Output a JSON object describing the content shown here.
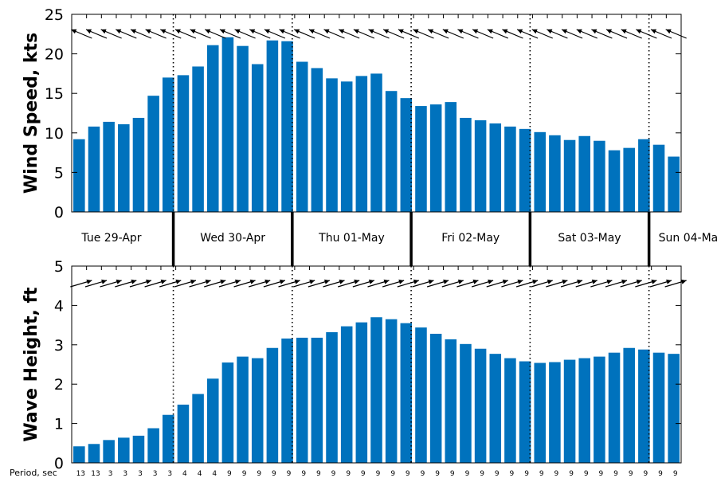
{
  "colors": {
    "bar": "#0072bd",
    "axis": "#000000"
  },
  "chart_data": [
    {
      "type": "bar",
      "ylabel": "Wind Speed, kts",
      "ylim": [
        0,
        25
      ],
      "yticks": [
        0,
        5,
        10,
        15,
        20,
        25
      ],
      "values": [
        9.2,
        10.8,
        11.4,
        11.1,
        11.9,
        14.7,
        17.0,
        17.3,
        18.4,
        21.1,
        22.1,
        21.0,
        18.7,
        21.7,
        21.6,
        19.0,
        18.2,
        16.9,
        16.5,
        17.2,
        17.5,
        15.3,
        14.4,
        13.4,
        13.6,
        13.9,
        11.9,
        11.6,
        11.2,
        10.8,
        10.5,
        10.1,
        9.7,
        9.1,
        9.6,
        9.0,
        7.8,
        8.1,
        9.2,
        8.5,
        7.0
      ],
      "arrow_direction": "from east-southeast, pointing up-left",
      "grid": false
    },
    {
      "type": "bar",
      "ylabel": "Wave Height, ft",
      "ylim": [
        0,
        5
      ],
      "yticks": [
        0,
        1,
        2,
        3,
        4,
        5
      ],
      "values": [
        0.42,
        0.48,
        0.58,
        0.64,
        0.69,
        0.88,
        1.22,
        1.48,
        1.75,
        2.14,
        2.55,
        2.7,
        2.66,
        2.92,
        3.16,
        3.18,
        3.18,
        3.32,
        3.47,
        3.57,
        3.7,
        3.65,
        3.55,
        3.44,
        3.28,
        3.14,
        3.02,
        2.9,
        2.77,
        2.66,
        2.58,
        2.54,
        2.56,
        2.62,
        2.66,
        2.7,
        2.8,
        2.92,
        2.88,
        2.8,
        2.77
      ],
      "arrow_direction": "pointing up-right",
      "grid": false
    }
  ],
  "days": [
    "Tue 29-Apr",
    "Wed 30-Apr",
    "Thu 01-May",
    "Fri 02-May",
    "Sat 03-May",
    "Sun 04-Ma"
  ],
  "period": {
    "label": "Period, sec",
    "values": [
      13,
      13,
      3,
      3,
      3,
      3,
      3,
      4,
      4,
      4,
      9,
      9,
      9,
      9,
      9,
      9,
      9,
      9,
      9,
      9,
      9,
      9,
      9,
      9,
      9,
      9,
      9,
      9,
      9,
      9,
      9,
      9,
      9,
      9,
      9,
      9,
      9,
      9,
      9,
      9,
      9
    ]
  }
}
